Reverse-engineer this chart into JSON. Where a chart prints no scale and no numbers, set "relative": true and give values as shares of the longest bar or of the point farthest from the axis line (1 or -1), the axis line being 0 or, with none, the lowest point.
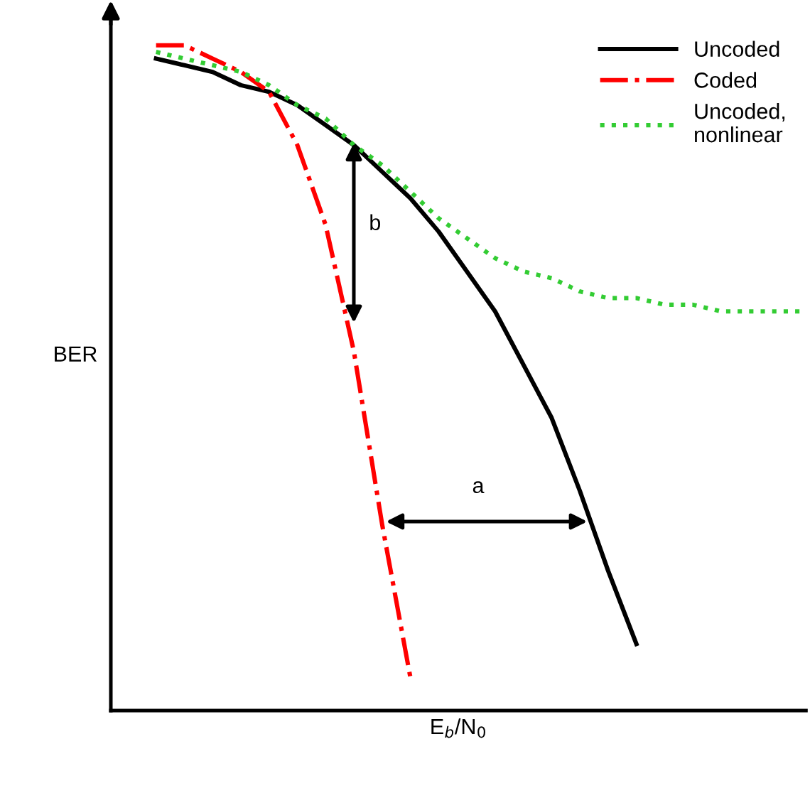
{
  "chart_data": {
    "type": "line",
    "relative": true,
    "xlabel": "E$_{b}$/N$_{0}$",
    "ylabel": "BER",
    "categories": [
      null,
      null,
      null,
      null,
      null,
      null,
      null,
      null,
      null,
      null,
      null,
      null,
      null,
      null,
      null,
      null,
      null,
      null,
      null,
      null,
      null,
      null,
      null,
      null
    ],
    "series": [
      {
        "name": "Uncoded",
        "color": "#000000",
        "line_style": "solid",
        "values": [
          0.98,
          0.97,
          0.96,
          0.94,
          0.93,
          0.91,
          0.88,
          0.85,
          0.81,
          0.77,
          0.72,
          0.66,
          0.6,
          0.52,
          0.44,
          0.33,
          0.21,
          0.1,
          null,
          null,
          null,
          null,
          null,
          null
        ]
      },
      {
        "name": "Coded",
        "color": "#ff0000",
        "line_style": "dashdot",
        "values": [
          1.0,
          1.0,
          0.98,
          0.96,
          0.93,
          0.85,
          0.73,
          0.54,
          0.28,
          0.05,
          null,
          null,
          null,
          null,
          null,
          null,
          null,
          null,
          null,
          null,
          null,
          null,
          null,
          null
        ]
      },
      {
        "name": "Uncoded,\nnonlinear",
        "color": "#33cc33",
        "line_style": "dotted",
        "values": [
          0.99,
          0.98,
          0.97,
          0.96,
          0.94,
          0.91,
          0.89,
          0.85,
          0.82,
          0.78,
          0.74,
          0.71,
          0.68,
          0.66,
          0.65,
          0.63,
          0.62,
          0.62,
          0.61,
          0.61,
          0.6,
          0.6,
          0.6,
          0.6
        ]
      }
    ],
    "legend": "top right",
    "marker": "none",
    "annotations": [
      "a",
      "b"
    ]
  }
}
